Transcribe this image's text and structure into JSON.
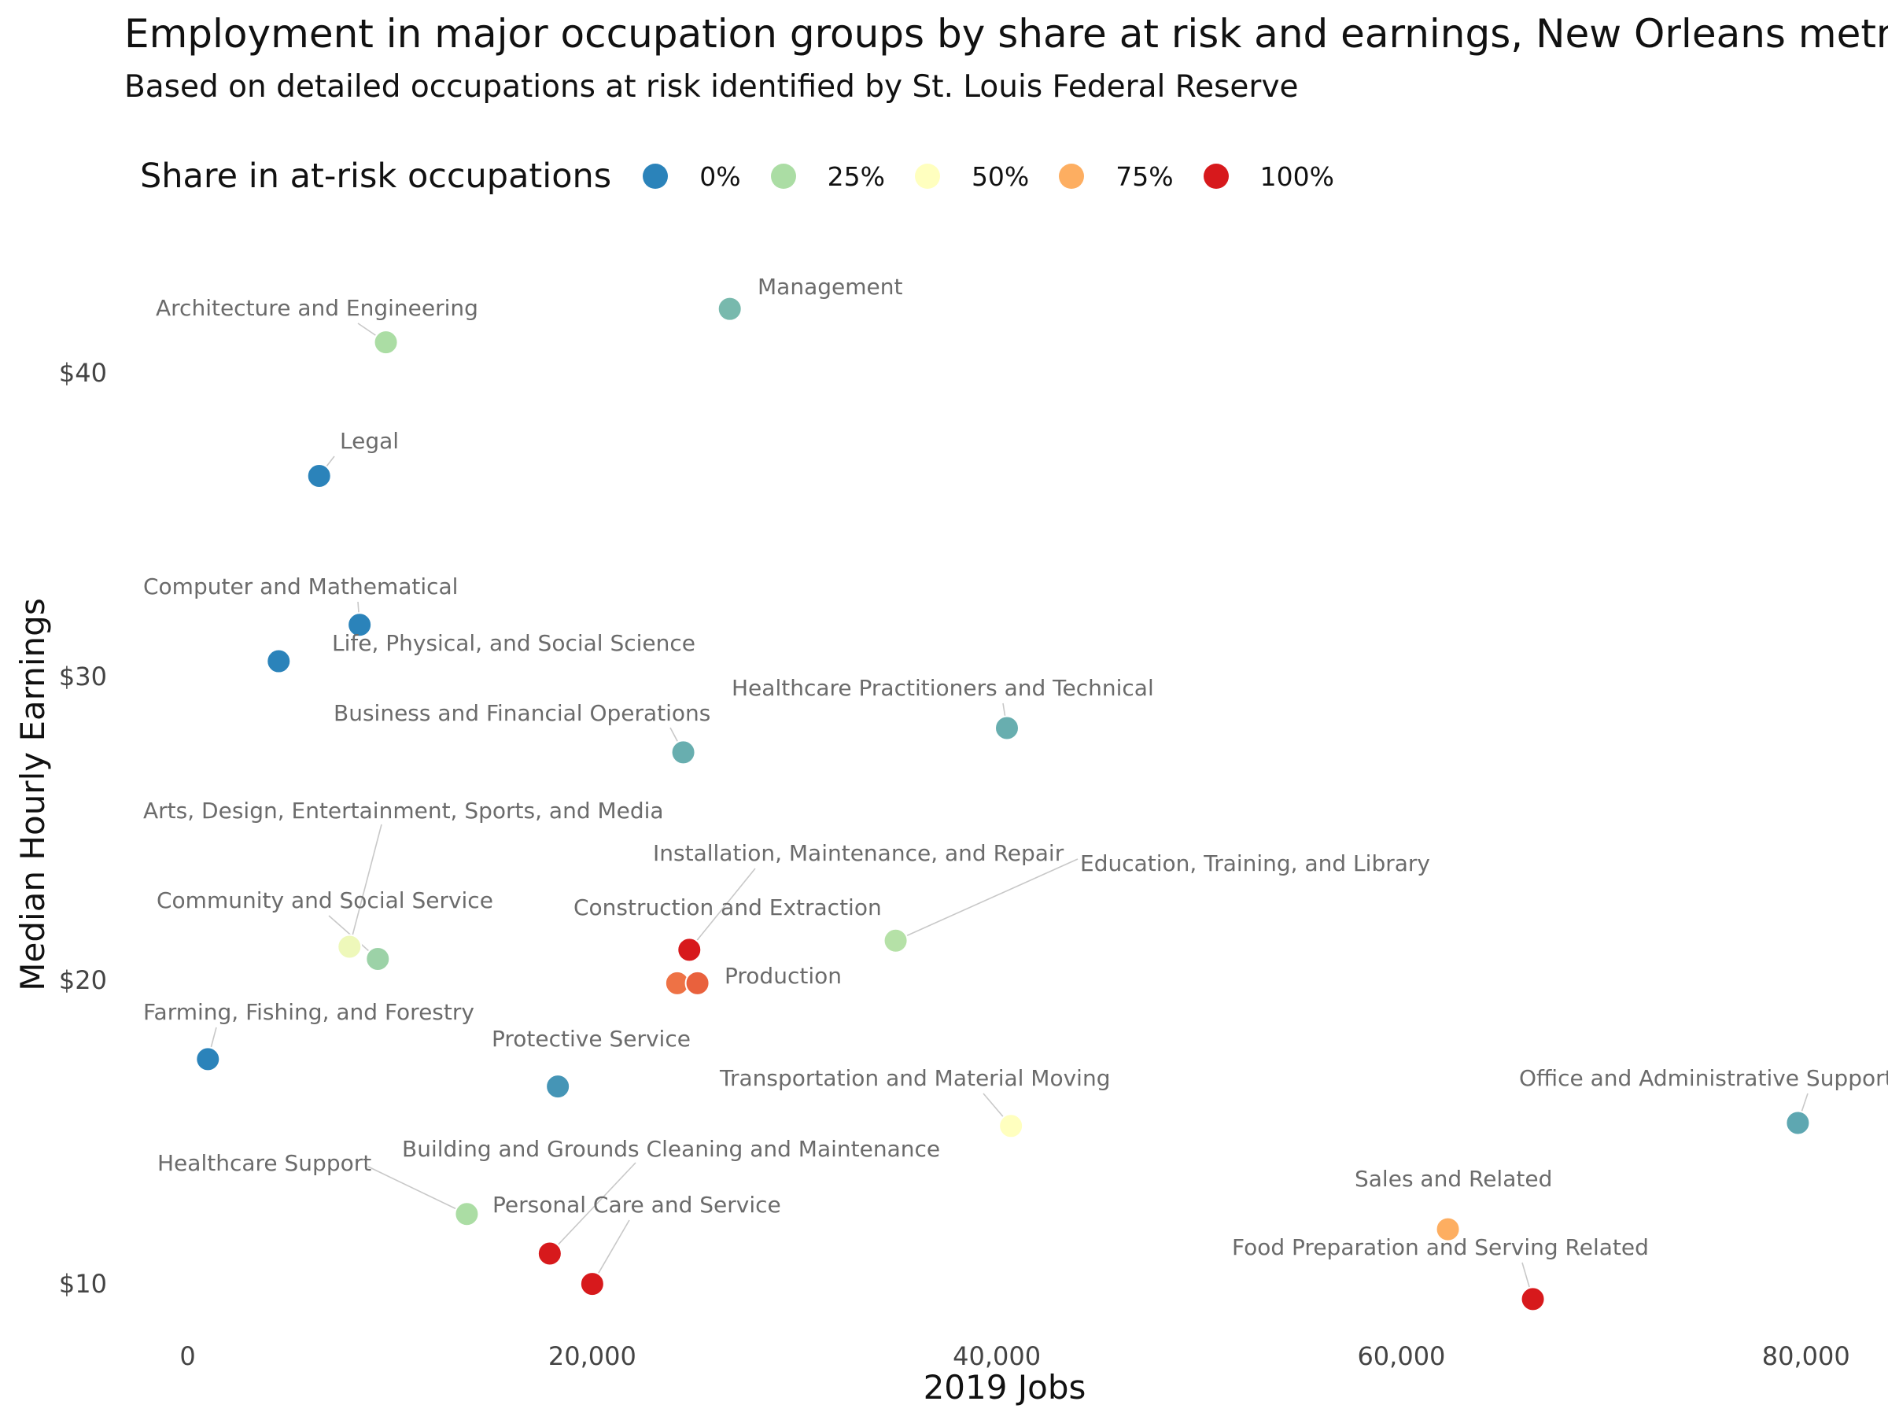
{
  "chart_data": {
    "type": "scatter",
    "title": "Employment in major occupation groups by share at risk and earnings, New Orleans metro",
    "subtitle": "Based on detailed occupations at risk identified by St. Louis Federal Reserve",
    "xlabel": "2019 Jobs",
    "ylabel": "Median Hourly Earnings",
    "xlim": [
      -1500,
      82500
    ],
    "ylim": [
      8.5,
      44.5
    ],
    "x_ticks": [
      0,
      20000,
      40000,
      60000,
      80000
    ],
    "x_tick_labels": [
      "0",
      "20,000",
      "40,000",
      "60,000",
      "80,000"
    ],
    "y_ticks": [
      10,
      20,
      30,
      40
    ],
    "y_tick_labels": [
      "$10",
      "$20",
      "$30",
      "$40"
    ],
    "grid": false,
    "legend": {
      "title": "Share in at-risk occupations",
      "position": "top",
      "items": [
        {
          "label": "0%",
          "color": "#2b83ba"
        },
        {
          "label": "25%",
          "color": "#abdda4"
        },
        {
          "label": "50%",
          "color": "#ffffbf"
        },
        {
          "label": "75%",
          "color": "#fdae61"
        },
        {
          "label": "100%",
          "color": "#d7191c"
        }
      ]
    },
    "points": [
      {
        "name": "Management",
        "x": 26800,
        "y": 42.1,
        "share": 0.15
      },
      {
        "name": "Architecture and Engineering",
        "x": 9800,
        "y": 41.0,
        "share": 0.25
      },
      {
        "name": "Legal",
        "x": 6500,
        "y": 36.6,
        "share": 0.0
      },
      {
        "name": "Computer and Mathematical",
        "x": 8500,
        "y": 31.7,
        "share": 0.0
      },
      {
        "name": "Life, Physical, and Social Science",
        "x": 4500,
        "y": 30.5,
        "share": 0.0
      },
      {
        "name": "Business and Financial Operations",
        "x": 24500,
        "y": 27.5,
        "share": 0.12
      },
      {
        "name": "Healthcare Practitioners and Technical",
        "x": 40500,
        "y": 28.3,
        "share": 0.12
      },
      {
        "name": "Arts, Design, Entertainment, Sports, and Media",
        "x": 8000,
        "y": 21.1,
        "share": 0.45
      },
      {
        "name": "Community and Social Service",
        "x": 9400,
        "y": 20.7,
        "share": 0.22
      },
      {
        "name": "Education, Training, and Library",
        "x": 35000,
        "y": 21.3,
        "share": 0.28
      },
      {
        "name": "Installation, Maintenance, and Repair",
        "x": 24800,
        "y": 21.0,
        "share": 1.0
      },
      {
        "name": "Construction and Extraction",
        "x": 24200,
        "y": 19.9,
        "share": 0.85
      },
      {
        "name": "Production",
        "x": 25200,
        "y": 19.9,
        "share": 0.88
      },
      {
        "name": "Farming, Fishing, and Forestry",
        "x": 1000,
        "y": 17.4,
        "share": 0.0
      },
      {
        "name": "Protective Service",
        "x": 18300,
        "y": 16.5,
        "share": 0.05
      },
      {
        "name": "Transportation and Material Moving",
        "x": 40700,
        "y": 15.2,
        "share": 0.5
      },
      {
        "name": "Office and Administrative Support",
        "x": 79600,
        "y": 15.3,
        "share": 0.1
      },
      {
        "name": "Healthcare Support",
        "x": 13800,
        "y": 12.3,
        "share": 0.25
      },
      {
        "name": "Building and Grounds Cleaning and Maintenance",
        "x": 17900,
        "y": 11.0,
        "share": 1.0
      },
      {
        "name": "Personal Care and Service",
        "x": 20000,
        "y": 10.0,
        "share": 1.0
      },
      {
        "name": "Sales and Related",
        "x": 62300,
        "y": 11.8,
        "share": 0.75
      },
      {
        "name": "Food Preparation and Serving Related",
        "x": 66500,
        "y": 9.5,
        "share": 1.0
      }
    ]
  }
}
